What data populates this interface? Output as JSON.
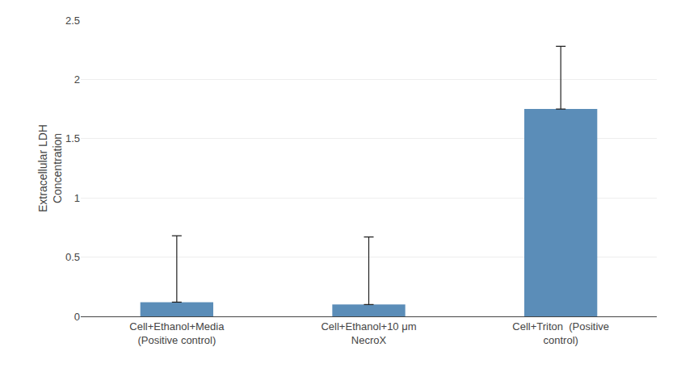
{
  "chart_data": {
    "type": "bar",
    "categories": [
      "Cell+Ethanol+Media\n(Positive control)",
      "Cell+Ethanol+10 μm\nNecroX",
      "Cell+Triton  (Positive\ncontrol)"
    ],
    "values": [
      0.12,
      0.1,
      1.75
    ],
    "errors_upper": [
      0.56,
      0.57,
      0.53
    ],
    "color": "#5B8DB8",
    "ylabel": "Extracellular LDH\nConcentration",
    "ylim": [
      0,
      2.5
    ],
    "yticks": [
      0,
      0.5,
      1,
      1.5,
      2,
      2.5
    ],
    "grid": true
  }
}
